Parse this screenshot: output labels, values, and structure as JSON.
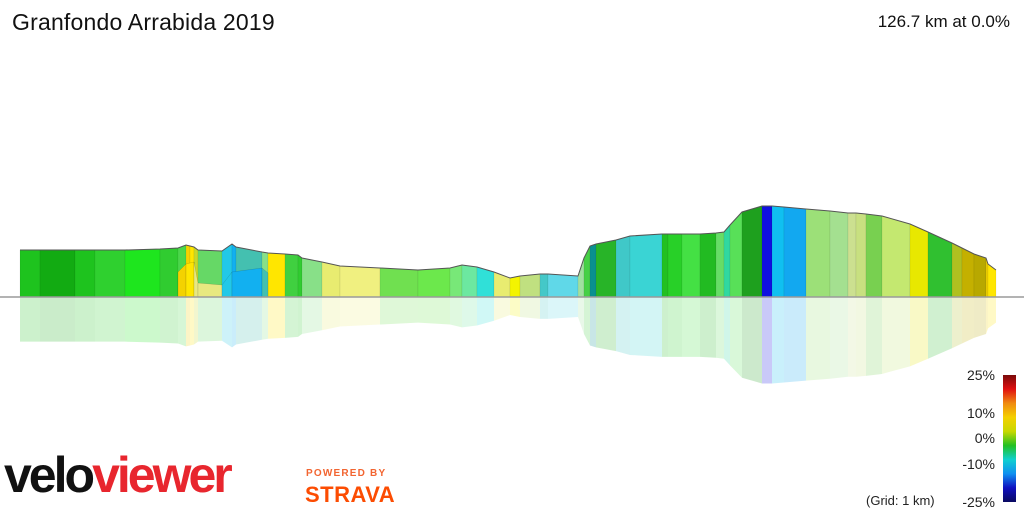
{
  "header": {
    "title": "Granfondo Arrabida 2019",
    "summary": "126.7 km at 0.0%"
  },
  "legend": {
    "labels": [
      "25%",
      "10%",
      "0%",
      "-10%",
      "-25%"
    ],
    "grid_note": "(Grid: 1 km)",
    "gradient_colors": [
      "#7a0a0a",
      "#e01010",
      "#f08a10",
      "#f4d000",
      "#c8d800",
      "#22c022",
      "#10d0d0",
      "#1090f0",
      "#1010c0",
      "#0a0a60"
    ]
  },
  "branding": {
    "logo_part1": "velo",
    "logo_part2": "viewer",
    "powered_by": "POWERED BY",
    "strava": "STRAVA"
  },
  "profile": {
    "segment_colors": [
      "#1ec31e",
      "#12ab12",
      "#1ec31e",
      "#2fd02f",
      "#1ee61e",
      "#30cc30",
      "#4ad84a",
      "#f4d200",
      "#ffe600",
      "#c8d82a",
      "#66d866",
      "#22c8e8",
      "#12b0f0",
      "#44c0b0",
      "#88e088",
      "#ffe600",
      "#40d040",
      "#30cc30",
      "#88e088",
      "#e8ec70",
      "#f0f080",
      "#70e050",
      "#6ce84c",
      "#78e878",
      "#6ce8a0",
      "#30e0d8",
      "#e8ec70",
      "#f4f400",
      "#c0e080",
      "#44c8c8",
      "#60d8e8",
      "#a0e0a0",
      "#46d046",
      "#0a9090",
      "#28b428",
      "#40c8c8",
      "#3ad4d4",
      "#22c022",
      "#28d028",
      "#44e044",
      "#22bb22",
      "#66dd66",
      "#30d8a0",
      "#58e058",
      "#1ea01e",
      "#1010e0",
      "#10c0f0",
      "#12a8f0",
      "#9ce078",
      "#a4e090",
      "#cce090",
      "#c8e080",
      "#78d050",
      "#c4e870",
      "#e8e800",
      "#30c030",
      "#b0c020",
      "#c4b000",
      "#b8a800",
      "#f0d000",
      "#ffe600",
      "#f0c000",
      "#22c022"
    ]
  }
}
